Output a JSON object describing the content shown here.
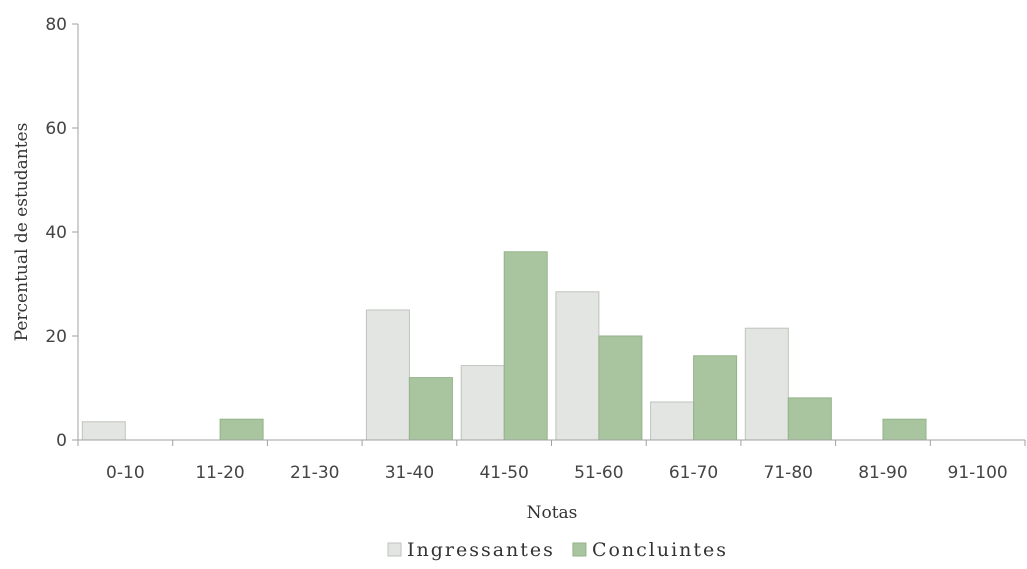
{
  "chart_data": {
    "type": "bar",
    "categories": [
      "0-10",
      "11-20",
      "21-30",
      "31-40",
      "41-50",
      "51-60",
      "61-70",
      "71-80",
      "81-90",
      "91-100"
    ],
    "series": [
      {
        "name": "Ingressantes",
        "values": [
          3.5,
          0,
          0,
          25,
          14.3,
          28.5,
          7.3,
          21.5,
          0,
          0
        ],
        "color": "#e3e5e2"
      },
      {
        "name": "Concluintes",
        "values": [
          0,
          4,
          0,
          12,
          36.2,
          20,
          16.2,
          8.1,
          4,
          0
        ],
        "color": "#a9c5a0"
      }
    ],
    "xlabel": "Notas",
    "ylabel": "Percentual de estudantes",
    "ylim": [
      0,
      80
    ],
    "yticks": [
      0,
      20,
      40,
      60,
      80
    ],
    "grid": false,
    "legend_position": "bottom"
  }
}
